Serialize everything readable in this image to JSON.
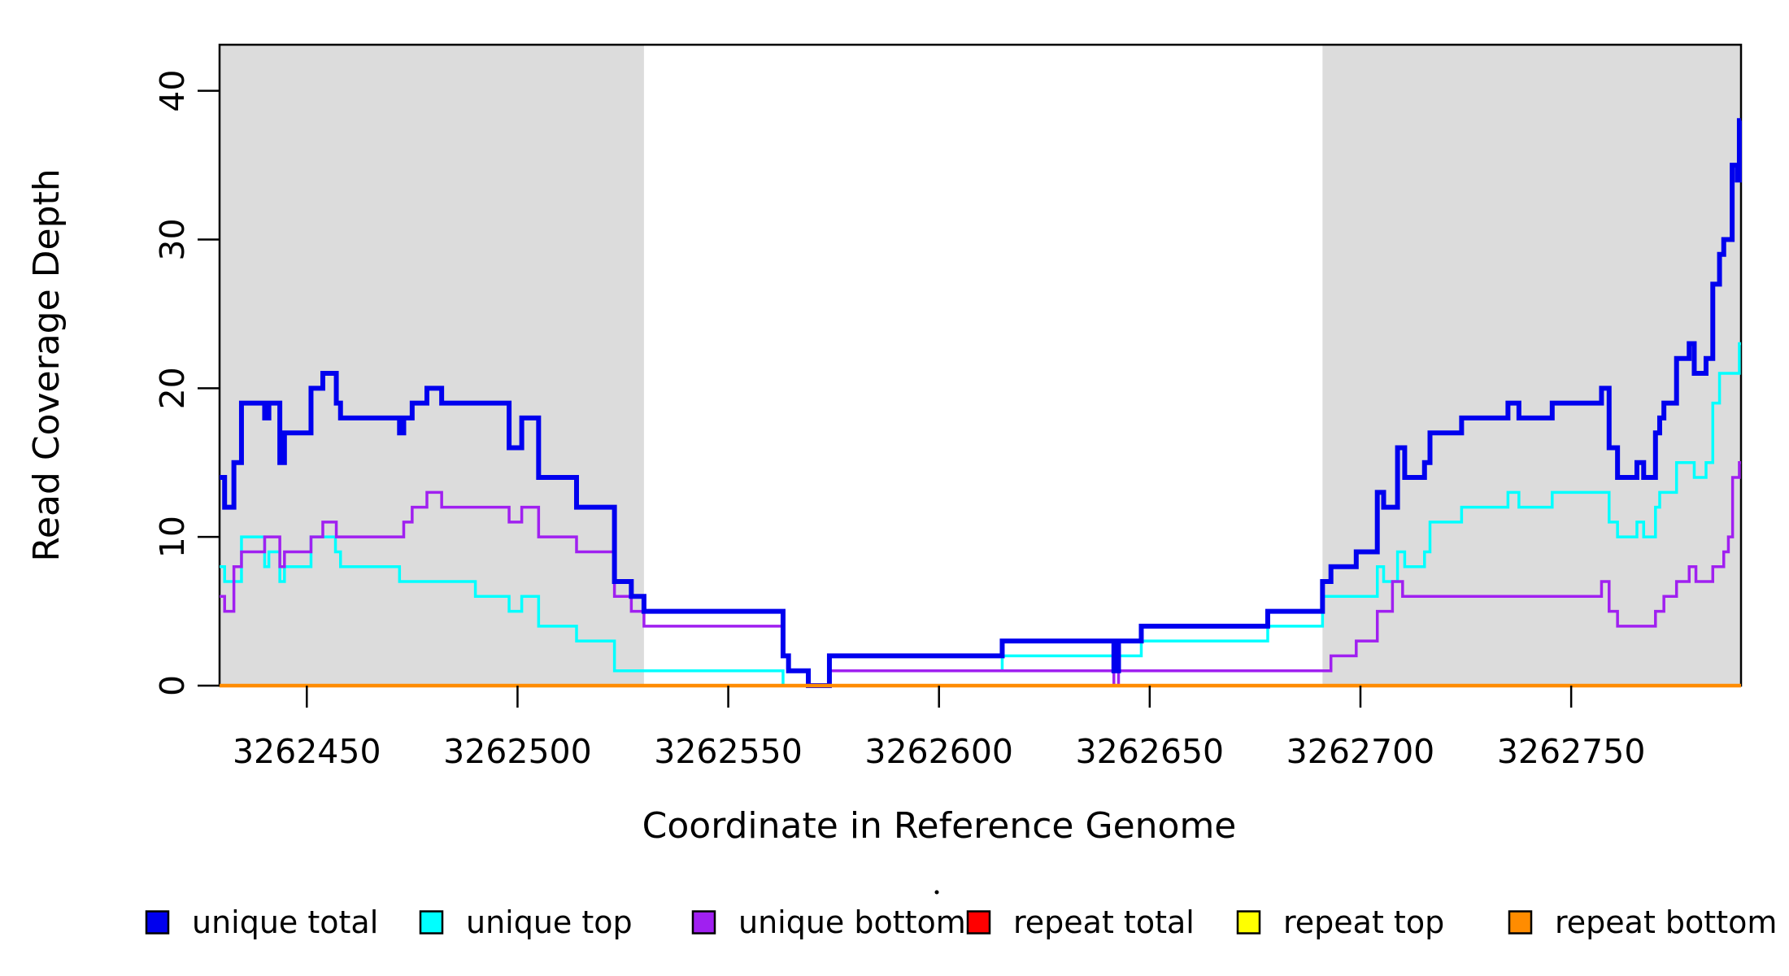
{
  "chart_data": {
    "type": "line",
    "subtype": "step-coverage-plot",
    "title": "",
    "xlabel": "Coordinate in Reference Genome",
    "ylabel": "Read Coverage Depth",
    "xlim": [
      3262429.3,
      3262790.3
    ],
    "ylim": [
      0,
      43.1
    ],
    "x_ticks": [
      3262450,
      3262500,
      3262550,
      3262600,
      3262650,
      3262700,
      3262750
    ],
    "y_ticks": [
      0,
      10,
      20,
      30,
      40
    ],
    "grid": false,
    "legend_position": "bottom",
    "shaded_regions": [
      {
        "x0": 3262429.3,
        "x1": 3262530,
        "color": "#DCDCDC"
      },
      {
        "x0": 3262691,
        "x1": 3262790.3,
        "color": "#DCDCDC"
      }
    ],
    "series": [
      {
        "name": "repeat total",
        "color": "#FF0000",
        "width": 3,
        "steps": [
          [
            3262429.3,
            0
          ],
          [
            3262790.3,
            0
          ]
        ]
      },
      {
        "name": "repeat top",
        "color": "#FFFF00",
        "width": 3,
        "steps": [
          [
            3262429.3,
            0
          ],
          [
            3262790.3,
            0
          ]
        ]
      },
      {
        "name": "unique top",
        "color": "#00FFFF",
        "width": 3.5,
        "steps": [
          [
            3262429.3,
            8
          ],
          [
            3262430.5,
            7
          ],
          [
            3262434.5,
            10
          ],
          [
            3262440,
            8
          ],
          [
            3262441,
            9
          ],
          [
            3262443.6,
            7
          ],
          [
            3262444.7,
            8
          ],
          [
            3262451,
            10
          ],
          [
            3262456.8,
            9
          ],
          [
            3262458,
            8
          ],
          [
            3262472,
            7
          ],
          [
            3262490,
            6
          ],
          [
            3262498,
            5
          ],
          [
            3262501,
            6
          ],
          [
            3262505,
            4
          ],
          [
            3262514,
            3
          ],
          [
            3262523,
            1
          ],
          [
            3262563,
            0
          ],
          [
            3262574,
            1
          ],
          [
            3262615,
            2
          ],
          [
            3262641.5,
            1
          ],
          [
            3262642.6,
            2
          ],
          [
            3262648,
            3
          ],
          [
            3262678,
            4
          ],
          [
            3262691,
            6
          ],
          [
            3262704,
            8
          ],
          [
            3262705.5,
            7
          ],
          [
            3262708.8,
            9
          ],
          [
            3262710.5,
            8
          ],
          [
            3262715.2,
            9
          ],
          [
            3262716.5,
            11
          ],
          [
            3262724,
            12
          ],
          [
            3262735,
            13
          ],
          [
            3262737.6,
            12
          ],
          [
            3262745.5,
            13
          ],
          [
            3262759,
            11
          ],
          [
            3262761,
            10
          ],
          [
            3262765.6,
            11
          ],
          [
            3262767.2,
            10
          ],
          [
            3262770,
            12
          ],
          [
            3262771,
            13
          ],
          [
            3262775,
            15
          ],
          [
            3262779.2,
            14
          ],
          [
            3262782,
            15
          ],
          [
            3262783.6,
            19
          ],
          [
            3262785.2,
            21
          ],
          [
            3262789.9,
            23
          ],
          [
            3262790.3,
            23
          ]
        ]
      },
      {
        "name": "unique bottom",
        "color": "#A020F0",
        "width": 3.5,
        "steps": [
          [
            3262429.3,
            6
          ],
          [
            3262430.5,
            5
          ],
          [
            3262432.7,
            8
          ],
          [
            3262434.5,
            9
          ],
          [
            3262440,
            10
          ],
          [
            3262443.6,
            8
          ],
          [
            3262444.7,
            9
          ],
          [
            3262451,
            10
          ],
          [
            3262453.8,
            11
          ],
          [
            3262457,
            10
          ],
          [
            3262473,
            11
          ],
          [
            3262475,
            12
          ],
          [
            3262478.5,
            13
          ],
          [
            3262482,
            12
          ],
          [
            3262498,
            11
          ],
          [
            3262501,
            12
          ],
          [
            3262505,
            10
          ],
          [
            3262514,
            9
          ],
          [
            3262523,
            6
          ],
          [
            3262527,
            5
          ],
          [
            3262530,
            4
          ],
          [
            3262563,
            2
          ],
          [
            3262564.3,
            1
          ],
          [
            3262569,
            0
          ],
          [
            3262574,
            1
          ],
          [
            3262641.5,
            0
          ],
          [
            3262642.6,
            1
          ],
          [
            3262693,
            2
          ],
          [
            3262699,
            3
          ],
          [
            3262704,
            5
          ],
          [
            3262707.6,
            7
          ],
          [
            3262710,
            6
          ],
          [
            3262757.2,
            7
          ],
          [
            3262759,
            5
          ],
          [
            3262761,
            4
          ],
          [
            3262770,
            5
          ],
          [
            3262772,
            6
          ],
          [
            3262775,
            7
          ],
          [
            3262778,
            8
          ],
          [
            3262779.6,
            7
          ],
          [
            3262783.6,
            8
          ],
          [
            3262786.2,
            9
          ],
          [
            3262787.3,
            10
          ],
          [
            3262788.3,
            14
          ],
          [
            3262789.9,
            15
          ],
          [
            3262790.3,
            15
          ]
        ]
      },
      {
        "name": "unique total",
        "color": "#0000EE",
        "width": 6,
        "steps": [
          [
            3262429.3,
            14
          ],
          [
            3262430.5,
            12
          ],
          [
            3262432.7,
            15
          ],
          [
            3262434.5,
            19
          ],
          [
            3262440,
            18
          ],
          [
            3262441,
            19
          ],
          [
            3262443.6,
            15
          ],
          [
            3262444.7,
            17
          ],
          [
            3262451,
            20
          ],
          [
            3262453.8,
            21
          ],
          [
            3262457,
            19
          ],
          [
            3262458,
            18
          ],
          [
            3262472,
            17
          ],
          [
            3262473,
            18
          ],
          [
            3262475,
            19
          ],
          [
            3262478.5,
            20
          ],
          [
            3262482,
            19
          ],
          [
            3262498,
            16
          ],
          [
            3262501,
            18
          ],
          [
            3262505,
            14
          ],
          [
            3262514,
            12
          ],
          [
            3262523,
            7
          ],
          [
            3262527,
            6
          ],
          [
            3262530,
            5
          ],
          [
            3262563,
            2
          ],
          [
            3262564.3,
            1
          ],
          [
            3262569,
            0
          ],
          [
            3262574,
            2
          ],
          [
            3262615,
            3
          ],
          [
            3262641.5,
            1
          ],
          [
            3262642.6,
            3
          ],
          [
            3262648,
            4
          ],
          [
            3262678,
            5
          ],
          [
            3262691,
            7
          ],
          [
            3262693,
            8
          ],
          [
            3262699,
            9
          ],
          [
            3262704,
            13
          ],
          [
            3262705.5,
            12
          ],
          [
            3262708.8,
            16
          ],
          [
            3262710.5,
            14
          ],
          [
            3262715.2,
            15
          ],
          [
            3262716.5,
            17
          ],
          [
            3262724,
            18
          ],
          [
            3262735,
            19
          ],
          [
            3262737.6,
            18
          ],
          [
            3262745.5,
            19
          ],
          [
            3262757.2,
            20
          ],
          [
            3262759,
            16
          ],
          [
            3262761,
            14
          ],
          [
            3262765.6,
            15
          ],
          [
            3262767.2,
            14
          ],
          [
            3262770,
            17
          ],
          [
            3262771,
            18
          ],
          [
            3262772,
            19
          ],
          [
            3262775,
            22
          ],
          [
            3262778,
            23
          ],
          [
            3262779.2,
            21
          ],
          [
            3262782,
            22
          ],
          [
            3262783.6,
            27
          ],
          [
            3262785.2,
            29
          ],
          [
            3262786.2,
            30
          ],
          [
            3262788.2,
            35
          ],
          [
            3262789.4,
            34
          ],
          [
            3262789.9,
            38
          ],
          [
            3262790.3,
            38
          ]
        ]
      },
      {
        "name": "repeat bottom",
        "color": "#FF8C00",
        "width": 4.5,
        "steps": [
          [
            3262429.3,
            0
          ],
          [
            3262790.3,
            0
          ]
        ]
      }
    ],
    "legend": [
      {
        "label": "unique total",
        "color": "#0000EE"
      },
      {
        "label": "unique top",
        "color": "#00FFFF"
      },
      {
        "label": "unique bottom",
        "color": "#A020F0"
      },
      {
        "label": "repeat total",
        "color": "#FF0000"
      },
      {
        "label": "repeat top",
        "color": "#FFFF00"
      },
      {
        "label": "repeat bottom",
        "color": "#FF8C00"
      }
    ]
  },
  "layout_text": {
    "x_axis_title": "Coordinate in Reference Genome",
    "y_axis_title": "Read Coverage Depth"
  }
}
